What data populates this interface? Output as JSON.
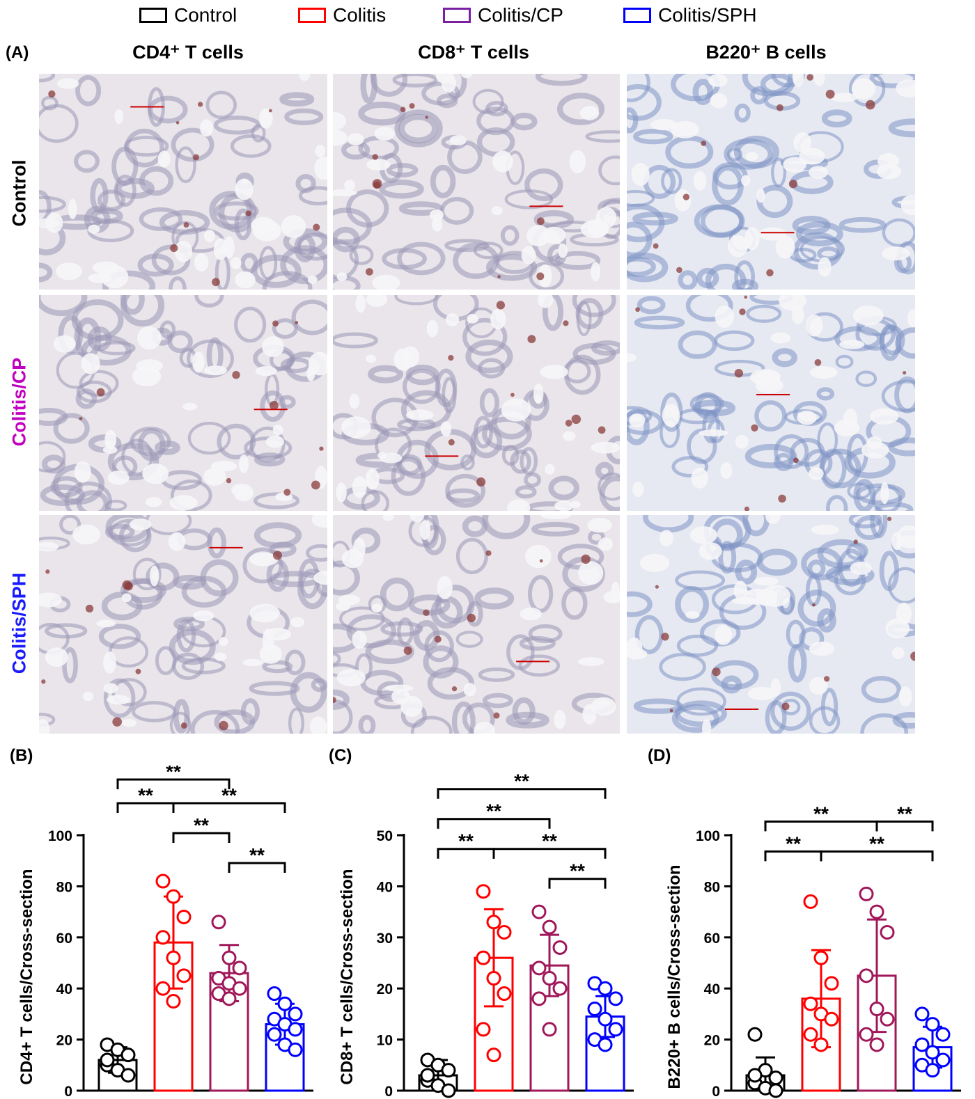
{
  "legend": [
    {
      "label": "Control",
      "color": "#000000"
    },
    {
      "label": "Colitis",
      "color": "#ff0000"
    },
    {
      "label": "Colitis/CP",
      "color": "#7b1fa2"
    },
    {
      "label": "Colitis/SPH",
      "color": "#0000ff"
    }
  ],
  "panelA": {
    "label": "(A)",
    "columns": [
      "CD4⁺  T cells",
      "CD8⁺ T cells",
      "B220⁺ B cells"
    ],
    "rows": [
      {
        "label": "Control",
        "color": "#000000"
      },
      {
        "label": "Colitis/CP",
        "color": "#c000c0"
      },
      {
        "label": "Colitis/SPH",
        "color": "#1a1aff"
      }
    ],
    "image_description": "IHC-stained colon tissue micrographs with scale bars",
    "scale_bar_color": "#cc0000"
  },
  "chart_data": [
    {
      "panel": "(B)",
      "type": "bar",
      "ylabel": "CD4+ T cells/Cross-section",
      "ylim": [
        0,
        100
      ],
      "yticks": [
        0,
        20,
        40,
        60,
        80,
        100
      ],
      "categories": [
        "Control",
        "Colitis",
        "Colitis/CP",
        "Colitis/SPH"
      ],
      "colors": [
        "#000000",
        "#ff0000",
        "#a0185a",
        "#0000ff"
      ],
      "values": [
        12,
        58,
        46,
        26
      ],
      "sd": [
        5,
        18,
        11,
        8
      ],
      "points": [
        [
          18,
          16,
          14,
          10,
          8,
          6,
          12
        ],
        [
          82,
          76,
          68,
          60,
          52,
          45,
          40,
          35
        ],
        [
          66,
          52,
          48,
          44,
          42,
          40,
          38,
          36
        ],
        [
          38,
          34,
          30,
          28,
          26,
          24,
          22,
          18,
          16
        ]
      ],
      "significance": [
        {
          "from": 0,
          "to": 2,
          "label": "**",
          "level": 4
        },
        {
          "from": 0,
          "to": 1,
          "label": "**",
          "level": 3
        },
        {
          "from": 1,
          "to": 3,
          "label": "**",
          "level": 3
        },
        {
          "from": 1,
          "to": 2,
          "label": "**",
          "level": 2
        },
        {
          "from": 2,
          "to": 3,
          "label": "**",
          "level": 1
        }
      ]
    },
    {
      "panel": "(C)",
      "type": "bar",
      "ylabel": "CD8+ T cells/Cross-section",
      "ylim": [
        0,
        50
      ],
      "yticks": [
        0,
        10,
        20,
        30,
        40,
        50
      ],
      "categories": [
        "Control",
        "Colitis",
        "Colitis/CP",
        "Colitis/SPH"
      ],
      "colors": [
        "#000000",
        "#ff0000",
        "#a0185a",
        "#0000ff"
      ],
      "values": [
        3,
        26,
        24.5,
        14.5
      ],
      "sd": [
        3,
        9.5,
        6,
        4
      ],
      "points": [
        [
          6,
          5,
          4,
          2,
          1,
          0,
          3
        ],
        [
          39,
          33,
          31,
          26,
          22,
          19,
          12,
          7
        ],
        [
          35,
          32,
          28,
          24,
          22,
          20,
          18,
          12
        ],
        [
          21,
          20,
          18,
          16,
          14,
          12,
          10,
          9
        ]
      ],
      "significance": [
        {
          "from": 0,
          "to": 3,
          "label": "**",
          "level": 4
        },
        {
          "from": 0,
          "to": 2,
          "label": "**",
          "level": 3
        },
        {
          "from": 0,
          "to": 1,
          "label": "**",
          "level": 2
        },
        {
          "from": 1,
          "to": 3,
          "label": "**",
          "level": 2
        },
        {
          "from": 2,
          "to": 3,
          "label": "**",
          "level": 1
        }
      ]
    },
    {
      "panel": "(D)",
      "type": "bar",
      "ylabel": "B220+ B cells/Cross-section",
      "ylim": [
        0,
        100
      ],
      "yticks": [
        0,
        20,
        40,
        60,
        80,
        100
      ],
      "categories": [
        "Control",
        "Colitis",
        "Colitis/CP",
        "Colitis/SPH"
      ],
      "colors": [
        "#000000",
        "#ff0000",
        "#a0185a",
        "#0000ff"
      ],
      "values": [
        6,
        36,
        45,
        17
      ],
      "sd": [
        7,
        19,
        22,
        8
      ],
      "points": [
        [
          22,
          8,
          5,
          3,
          1,
          0,
          6
        ],
        [
          74,
          52,
          42,
          34,
          30,
          28,
          22,
          18
        ],
        [
          77,
          70,
          62,
          45,
          32,
          28,
          22,
          18
        ],
        [
          30,
          26,
          22,
          18,
          15,
          12,
          10,
          8
        ]
      ],
      "significance": [
        {
          "from": 0,
          "to": 2,
          "label": "**",
          "level": 3
        },
        {
          "from": 2,
          "to": 3,
          "label": "**",
          "level": 3
        },
        {
          "from": 0,
          "to": 1,
          "label": "**",
          "level": 2
        },
        {
          "from": 1,
          "to": 3,
          "label": "**",
          "level": 2
        }
      ]
    }
  ]
}
